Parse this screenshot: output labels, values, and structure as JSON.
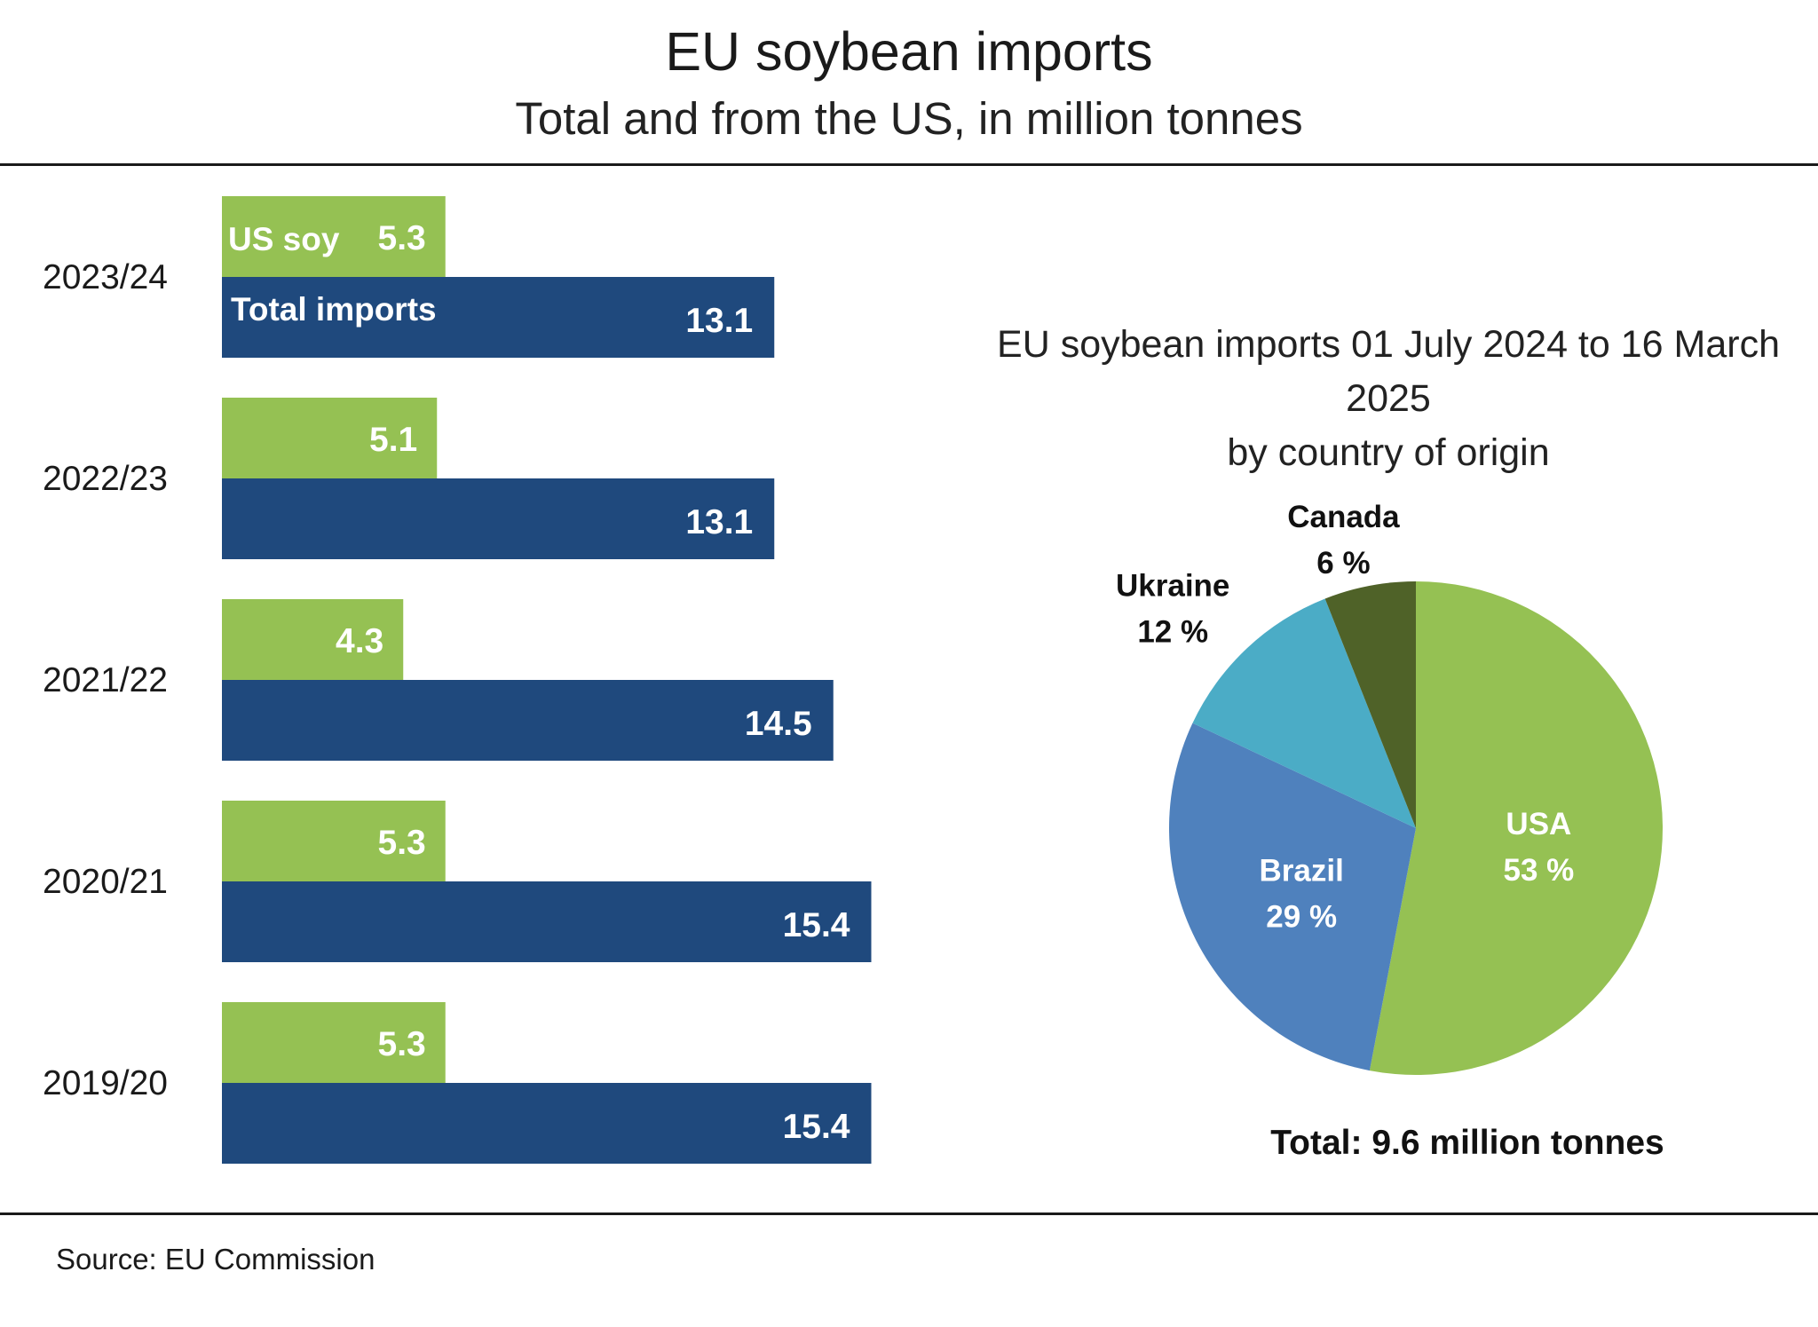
{
  "header": {
    "title": "EU soybean imports",
    "subtitle": "Total and from the US, in million tonnes"
  },
  "footer": {
    "source": "Source:  EU Commission"
  },
  "colors": {
    "us_soy": "#95c153",
    "total_imports": "#1f497d",
    "usa": "#95c153",
    "brazil": "#4f81bd",
    "ukraine": "#4bacc6",
    "canada": "#4f6228"
  },
  "chart_data": [
    {
      "type": "bar",
      "orientation": "horizontal",
      "categories": [
        "2023/24",
        "2022/23",
        "2021/22",
        "2020/21",
        "2019/20"
      ],
      "series": [
        {
          "name": "US soy",
          "values": [
            5.3,
            5.1,
            4.3,
            5.3,
            5.3
          ]
        },
        {
          "name": "Total imports",
          "values": [
            13.1,
            13.1,
            14.5,
            15.4,
            15.4
          ]
        }
      ],
      "legend_placement": "inside first bars",
      "grid": false
    },
    {
      "type": "pie",
      "title_lines": [
        "EU soybean imports 01 July 2024 to 16 March",
        "2025",
        "by country of origin"
      ],
      "slices": [
        {
          "name": "USA",
          "value": 53,
          "label": "53 %"
        },
        {
          "name": "Brazil",
          "value": 29,
          "label": "29 %"
        },
        {
          "name": "Ukraine",
          "value": 12,
          "label": "12 %"
        },
        {
          "name": "Canada",
          "value": 6,
          "label": "6 %"
        }
      ],
      "total_label": "Total: 9.6 million tonnes"
    }
  ]
}
